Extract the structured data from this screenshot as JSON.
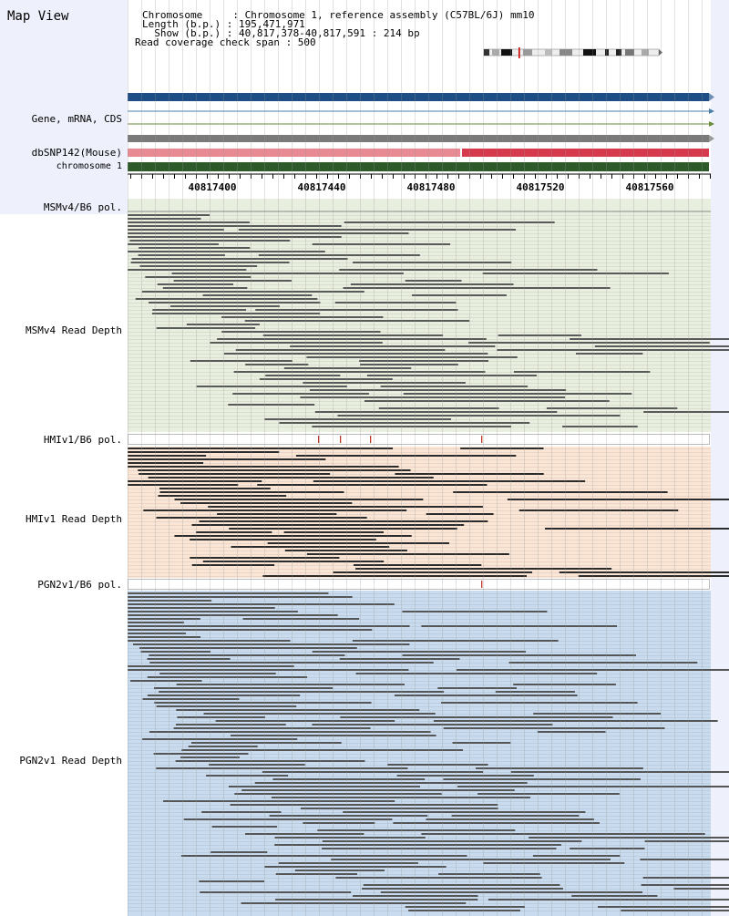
{
  "app": {
    "title": "Map View"
  },
  "info": {
    "chromosome_line": "Chromosome     : Chromosome 1, reference assembly (C57BL/6J) mm10",
    "length_line": "Length (b.p.) : 195,471,971",
    "show_line": "  Show (b.p.) : 40,817,378-40,817,591 : 214 bp",
    "coverage_line": "Read coverage check span : 500"
  },
  "tracks": {
    "gene": {
      "label": "Gene, mRNA, CDS"
    },
    "dbsnp": {
      "label": "dbSNP142(Mouse)"
    },
    "chromosome": {
      "label": "chromosome 1"
    }
  },
  "ruler": {
    "ticks": [
      "40817400",
      "40817440",
      "40817480",
      "40817520",
      "40817560"
    ]
  },
  "samples": [
    {
      "pol_label": "MSMv4/B6 pol.",
      "depth_label": "MSMv4 Read Depth",
      "bg": "#e9efdf"
    },
    {
      "pol_label": "HMIv1/B6 pol.",
      "depth_label": "HMIv1 Read Depth",
      "bg": "#fbe6d6"
    },
    {
      "pol_label": "PGN2v1/B6 pol.",
      "depth_label": "PGN2v1 Read Depth",
      "bg": "#c9dbef"
    }
  ],
  "colors": {
    "gene_blue": "#1f4e86",
    "snp_pink": "#e88a93",
    "snp_red": "#d53b4c",
    "chrom_green": "#2e5a2a",
    "read_gray": "#595959",
    "variant_red": "#c0392b"
  }
}
